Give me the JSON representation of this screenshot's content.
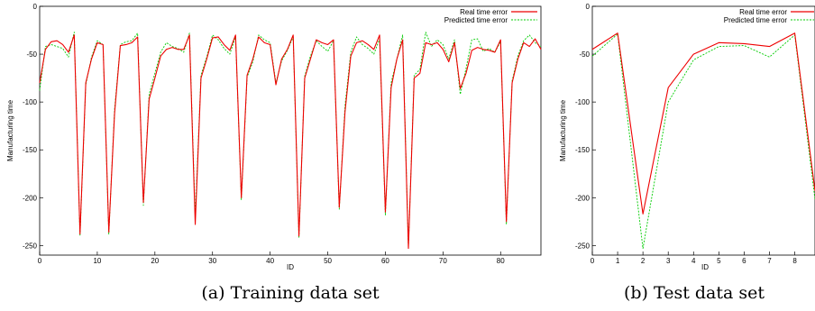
{
  "captions": [
    "(a) Training data set",
    "(b) Test data set"
  ],
  "colors": {
    "real": "#ee0000",
    "predicted": "#00cc00",
    "axis": "#000000"
  },
  "chart_data": [
    {
      "type": "line",
      "xlabel": "ID",
      "ylabel": "Manufacturing time",
      "xlim": [
        0,
        87
      ],
      "ylim": [
        -260,
        0
      ],
      "xticks": [
        0,
        10,
        20,
        30,
        40,
        50,
        60,
        70,
        80
      ],
      "yticks": [
        0,
        -50,
        -100,
        -150,
        -200,
        -250
      ],
      "legend_position": "top-right",
      "grid": false,
      "series": [
        {
          "name": "Real time error",
          "style": "solid",
          "x": [
            0,
            1,
            2,
            3,
            4,
            5,
            6,
            7,
            8,
            9,
            10,
            11,
            12,
            13,
            14,
            15,
            16,
            17,
            18,
            19,
            20,
            21,
            22,
            23,
            24,
            25,
            26,
            27,
            28,
            29,
            30,
            31,
            32,
            33,
            34,
            35,
            36,
            37,
            38,
            39,
            40,
            41,
            42,
            43,
            44,
            45,
            46,
            47,
            48,
            49,
            50,
            51,
            52,
            53,
            54,
            55,
            56,
            57,
            58,
            59,
            60,
            61,
            62,
            63,
            64,
            65,
            66,
            67,
            68,
            69,
            70,
            71,
            72,
            73,
            74,
            75,
            76,
            77,
            78,
            79,
            80,
            81,
            82,
            83,
            84,
            85,
            86,
            87
          ],
          "values": [
            -80,
            -45,
            -37,
            -36,
            -40,
            -48,
            -30,
            -238,
            -80,
            -55,
            -38,
            -40,
            -236,
            -112,
            -41,
            -40,
            -38,
            -32,
            -205,
            -97,
            -75,
            -52,
            -45,
            -43,
            -45,
            -45,
            -30,
            -228,
            -75,
            -55,
            -33,
            -32,
            -40,
            -46,
            -30,
            -200,
            -72,
            -55,
            -32,
            -38,
            -40,
            -82,
            -55,
            -45,
            -30,
            -240,
            -75,
            -55,
            -35,
            -38,
            -40,
            -35,
            -210,
            -110,
            -52,
            -38,
            -36,
            -40,
            -45,
            -30,
            -215,
            -85,
            -55,
            -35,
            -253,
            -75,
            -70,
            -38,
            -40,
            -38,
            -45,
            -58,
            -38,
            -86,
            -70,
            -46,
            -43,
            -45,
            -46,
            -48,
            -35,
            -225,
            -80,
            -55,
            -38,
            -42,
            -34,
            -45
          ]
        },
        {
          "name": "Predicted time error",
          "style": "dashed",
          "x": [
            0,
            1,
            2,
            3,
            4,
            5,
            6,
            7,
            8,
            9,
            10,
            11,
            12,
            13,
            14,
            15,
            16,
            17,
            18,
            19,
            20,
            21,
            22,
            23,
            24,
            25,
            26,
            27,
            28,
            29,
            30,
            31,
            32,
            33,
            34,
            35,
            36,
            37,
            38,
            39,
            40,
            41,
            42,
            43,
            44,
            45,
            46,
            47,
            48,
            49,
            50,
            51,
            52,
            53,
            54,
            55,
            56,
            57,
            58,
            59,
            60,
            61,
            62,
            63,
            64,
            65,
            66,
            67,
            68,
            69,
            70,
            71,
            72,
            73,
            74,
            75,
            76,
            77,
            78,
            79,
            80,
            81,
            82,
            83,
            84,
            85,
            86,
            87
          ],
          "values": [
            -88,
            -42,
            -40,
            -42,
            -44,
            -53,
            -27,
            -240,
            -82,
            -53,
            -36,
            -40,
            -238,
            -108,
            -40,
            -37,
            -36,
            -28,
            -208,
            -92,
            -70,
            -48,
            -38,
            -42,
            -44,
            -48,
            -28,
            -220,
            -72,
            -53,
            -30,
            -35,
            -44,
            -50,
            -32,
            -202,
            -74,
            -58,
            -30,
            -35,
            -38,
            -80,
            -57,
            -46,
            -32,
            -242,
            -73,
            -52,
            -36,
            -42,
            -47,
            -36,
            -212,
            -104,
            -48,
            -32,
            -40,
            -44,
            -50,
            -34,
            -218,
            -80,
            -55,
            -30,
            -252,
            -72,
            -66,
            -27,
            -42,
            -35,
            -40,
            -55,
            -35,
            -92,
            -65,
            -35,
            -34,
            -47,
            -44,
            -48,
            -37,
            -228,
            -78,
            -52,
            -36,
            -30,
            -38,
            -42
          ]
        }
      ]
    },
    {
      "type": "line",
      "xlabel": "ID",
      "ylabel": "Manufacturing time",
      "xlim": [
        0,
        8.8
      ],
      "ylim": [
        -260,
        0
      ],
      "xticks": [
        0,
        1,
        2,
        3,
        4,
        5,
        6,
        7,
        8
      ],
      "yticks": [
        0,
        -50,
        -100,
        -150,
        -200,
        -250
      ],
      "legend_position": "top-right",
      "grid": false,
      "series": [
        {
          "name": "Real time error",
          "style": "solid",
          "x": [
            0,
            1,
            2,
            3,
            4,
            5,
            6,
            7,
            8,
            8.8
          ],
          "values": [
            -45,
            -28,
            -217,
            -85,
            -50,
            -38,
            -39,
            -42,
            -28,
            -193
          ]
        },
        {
          "name": "Predicted time error",
          "style": "dashed",
          "x": [
            0,
            1,
            2,
            3,
            4,
            5,
            6,
            7,
            8,
            8.8
          ],
          "values": [
            -52,
            -29,
            -253,
            -100,
            -56,
            -42,
            -41,
            -53,
            -30,
            -202
          ]
        }
      ]
    }
  ]
}
